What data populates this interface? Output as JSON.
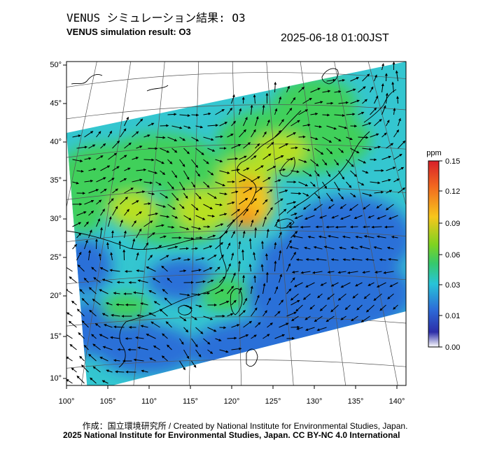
{
  "header": {
    "title_jp": "VENUS シミュレーション結果: O3",
    "title_en": "VENUS simulation result: O3",
    "timestamp": "2025-06-18 01:00JST"
  },
  "map": {
    "lat_ticks": [
      "50°",
      "45°",
      "40°",
      "35°",
      "30°",
      "25°",
      "20°",
      "15°",
      "10°"
    ],
    "lon_ticks": [
      "100°",
      "105°",
      "110°",
      "115°",
      "120°",
      "125°",
      "130°",
      "135°",
      "140°"
    ],
    "field_colors": {
      "low": "#2a6fd8",
      "mid": "#34c6d0",
      "moderate": "#3fd05a",
      "elevated": "#b8e021",
      "high": "#f7c61c",
      "peak": "#f39a1b"
    }
  },
  "colorbar": {
    "unit": "ppm",
    "tick_labels": [
      "0.15",
      "0.12",
      "0.09",
      "0.06",
      "0.03",
      "0.01",
      "0.00"
    ],
    "stops": [
      "#d8202a",
      "#f26a1f",
      "#f7c61c",
      "#7ed321",
      "#36c96b",
      "#28c4d8",
      "#2d6bd8",
      "#2d2ea8",
      "#ffffff"
    ]
  },
  "footer": {
    "credit": "作成：国立環境研究所 / Created by National Institute for Environmental Studies, Japan.",
    "copyright": "2025 National Institute for Environmental Studies, Japan. CC BY-NC 4.0 International"
  }
}
